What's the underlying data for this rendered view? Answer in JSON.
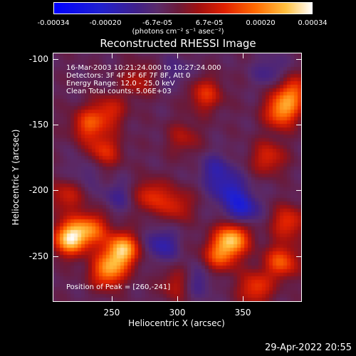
{
  "colorbar": {
    "ticks": [
      "-0.00034",
      "-0.00020",
      "-6.7e-05",
      "6.7e-05",
      "0.00020",
      "0.00034"
    ],
    "unit": "(photons cm⁻² s⁻¹ asec⁻²)"
  },
  "chart_data": {
    "type": "heatmap",
    "title": "Reconstructed RHESSI Image",
    "xlabel": "Heliocentric X (arcsec)",
    "ylabel": "Heliocentric Y (arcsec)",
    "xlim": [
      205,
      395
    ],
    "ylim": [
      -285,
      -95
    ],
    "x_ticks": [
      "250",
      "300",
      "350"
    ],
    "y_ticks": [
      "-100",
      "-150",
      "-200",
      "-250"
    ],
    "color_range": [
      -0.00034,
      0.00034
    ],
    "peak_position": [
      260,
      -241
    ],
    "blobs": [
      {
        "x": 218,
        "y": -237,
        "value": 0.00034
      },
      {
        "x": 258,
        "y": -246,
        "value": 0.00032
      },
      {
        "x": 247,
        "y": -262,
        "value": 0.00026
      },
      {
        "x": 234,
        "y": -230,
        "value": 0.00022
      },
      {
        "x": 232,
        "y": -150,
        "value": 0.00018
      },
      {
        "x": 244,
        "y": -170,
        "value": 0.00016
      },
      {
        "x": 248,
        "y": -140,
        "value": 0.00014
      },
      {
        "x": 322,
        "y": -127,
        "value": 0.00016
      },
      {
        "x": 380,
        "y": -140,
        "value": 0.00025
      },
      {
        "x": 388,
        "y": -125,
        "value": 0.0002
      },
      {
        "x": 370,
        "y": -175,
        "value": 0.00015
      },
      {
        "x": 280,
        "y": -205,
        "value": 0.00016
      },
      {
        "x": 300,
        "y": -212,
        "value": 0.00013
      },
      {
        "x": 343,
        "y": -237,
        "value": 0.00029
      },
      {
        "x": 333,
        "y": -250,
        "value": 0.0002
      },
      {
        "x": 385,
        "y": -225,
        "value": 0.00017
      },
      {
        "x": 360,
        "y": -275,
        "value": 0.00018
      },
      {
        "x": 300,
        "y": -272,
        "value": 0.00012
      },
      {
        "x": 215,
        "y": -205,
        "value": 0.00013
      },
      {
        "x": 380,
        "y": -255,
        "value": 0.00021
      },
      {
        "x": 270,
        "y": -116,
        "value": 0.00011
      },
      {
        "x": 305,
        "y": -160,
        "value": 0.0001
      },
      {
        "x": 340,
        "y": -200,
        "value": -0.00012
      },
      {
        "x": 350,
        "y": -215,
        "value": -0.00016
      },
      {
        "x": 330,
        "y": -185,
        "value": -0.0001
      },
      {
        "x": 288,
        "y": -242,
        "value": -0.00012
      },
      {
        "x": 315,
        "y": -270,
        "value": -9e-05
      },
      {
        "x": 372,
        "y": -110,
        "value": -8e-05
      },
      {
        "x": 255,
        "y": -205,
        "value": -7e-05
      },
      {
        "x": 230,
        "y": -185,
        "value": -6e-05
      },
      {
        "x": 300,
        "y": -110,
        "value": -6e-05
      }
    ]
  },
  "annotations": {
    "time": "16-Mar-2003 10:21:24.000 to 10:27:24.000",
    "detectors": "Detectors: 3F 4F 5F 6F 7F 8F, Att 0",
    "energy": "Energy Range: 12.0 - 25.0 keV",
    "clean": "Clean     Total counts: 5.06E+03",
    "peak": "Position of Peak = [260,-241]"
  },
  "footer": {
    "date": "29-Apr-2022 20:55"
  }
}
